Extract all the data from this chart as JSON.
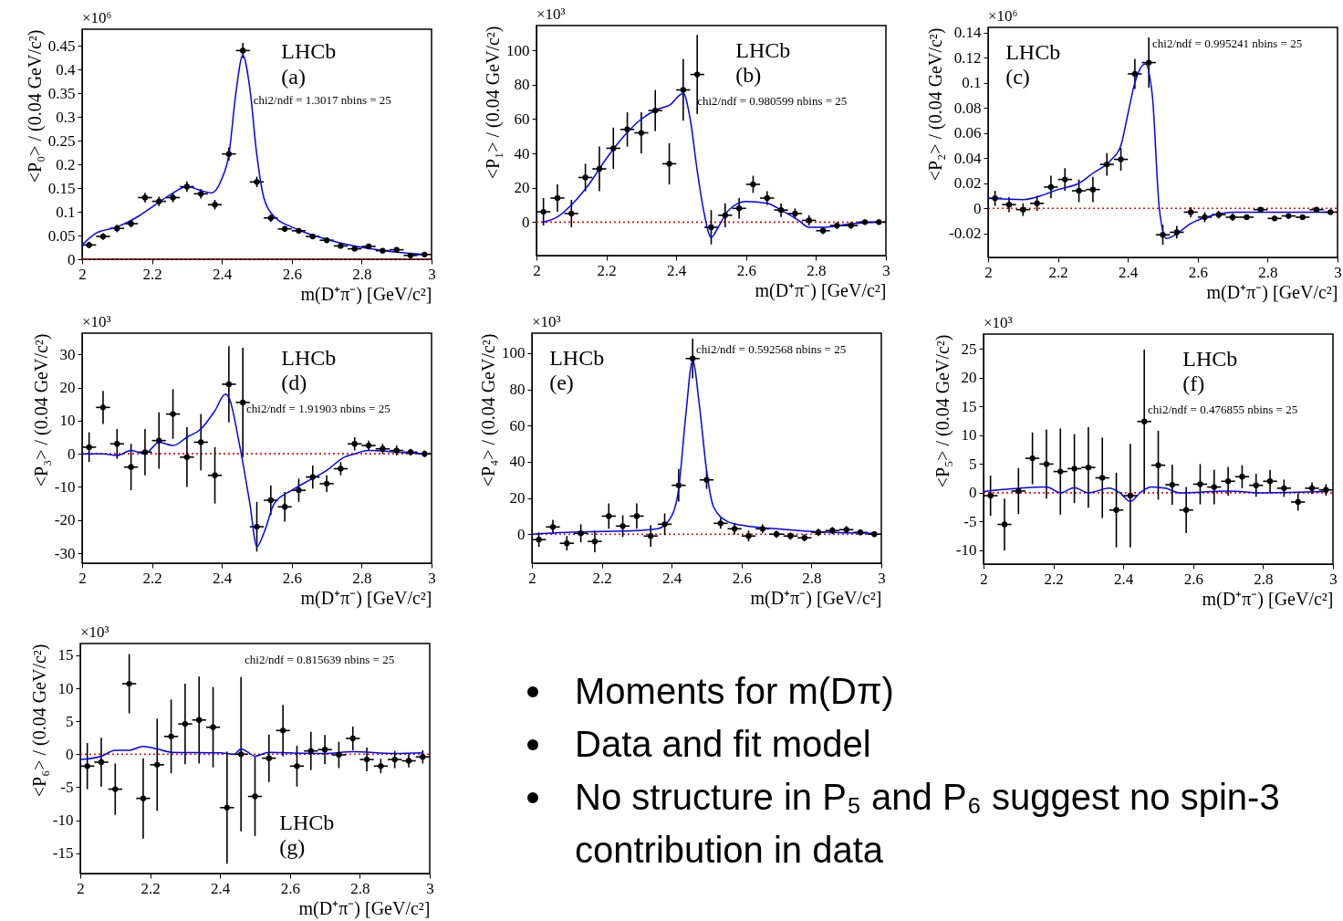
{
  "chart_data": [
    {
      "type": "scatter",
      "xlabel": "m(D⁺π⁻) [GeV/c²]",
      "ylabel": "<P₀> / (0.04 GeV/c²)",
      "x": [
        2.02,
        2.06,
        2.1,
        2.14,
        2.18,
        2.22,
        2.26,
        2.3,
        2.34,
        2.38,
        2.42,
        2.46,
        2.5,
        2.54,
        2.58,
        2.62,
        2.66,
        2.7,
        2.74,
        2.78,
        2.82,
        2.86,
        2.9,
        2.94,
        2.98
      ],
      "xlim": [
        2,
        3
      ],
      "xticks": [
        2,
        2.2,
        2.4,
        2.6,
        2.8,
        3
      ],
      "ylim": [
        0,
        0.485
      ],
      "yticks": [
        0,
        0.05,
        0.1,
        0.15,
        0.2,
        0.25,
        0.3,
        0.35,
        0.4,
        0.45
      ],
      "ref_lines": [
        {
          "axis": "y",
          "value": 0,
          "color": "#ff0000",
          "line_style": "dotted"
        }
      ],
      "annotations": [
        "×10⁶",
        "LHCb",
        "(a)",
        "chi2/ndf = 1.3017 nbins = 25"
      ],
      "series": [
        {
          "type": "scatter",
          "color": "#000000",
          "marker": "circle",
          "values": [
            0.03,
            0.048,
            0.065,
            0.075,
            0.13,
            0.122,
            0.13,
            0.153,
            0.138,
            0.115,
            0.222,
            0.44,
            0.163,
            0.087,
            0.064,
            0.06,
            0.048,
            0.04,
            0.028,
            0.022,
            0.027,
            0.018,
            0.02,
            0.008,
            0.01
          ],
          "errors": [
            0.007,
            0.007,
            0.008,
            0.008,
            0.01,
            0.01,
            0.01,
            0.011,
            0.01,
            0.01,
            0.014,
            0.016,
            0.011,
            0.008,
            0.006,
            0.006,
            0.005,
            0.005,
            0.004,
            0.004,
            0.004,
            0.003,
            0.003,
            0.003,
            0.003
          ],
          "xerrors": [
            0.02,
            0.02,
            0.02,
            0.02,
            0.02,
            0.02,
            0.02,
            0.02,
            0.02,
            0.02,
            0.02,
            0.02,
            0.02,
            0.02,
            0.02,
            0.02,
            0.02,
            0.02,
            0.02,
            0.02,
            0.02,
            0.02,
            0.02,
            0.02,
            0.02
          ]
        },
        {
          "type": "line",
          "color": "#0000ff",
          "marker": "none",
          "line_style": "solid",
          "x": [
            2.0,
            2.04,
            2.1,
            2.16,
            2.2,
            2.25,
            2.3,
            2.34,
            2.37,
            2.4,
            2.42,
            2.44,
            2.46,
            2.48,
            2.5,
            2.52,
            2.55,
            2.6,
            2.7,
            2.8,
            2.9,
            2.98
          ],
          "values": [
            0.03,
            0.055,
            0.068,
            0.09,
            0.11,
            0.135,
            0.153,
            0.145,
            0.14,
            0.17,
            0.22,
            0.35,
            0.43,
            0.36,
            0.22,
            0.13,
            0.09,
            0.068,
            0.042,
            0.025,
            0.015,
            0.01
          ]
        }
      ]
    },
    {
      "type": "scatter",
      "xlabel": "m(D⁺π⁻) [GeV/c²]",
      "ylabel": "<P₁> / (0.04 GeV/c²)",
      "x": [
        2.02,
        2.06,
        2.1,
        2.14,
        2.18,
        2.22,
        2.26,
        2.3,
        2.34,
        2.38,
        2.42,
        2.46,
        2.5,
        2.54,
        2.58,
        2.62,
        2.66,
        2.7,
        2.74,
        2.78,
        2.82,
        2.86,
        2.9,
        2.94,
        2.98
      ],
      "xlim": [
        2,
        3
      ],
      "xticks": [
        2,
        2.2,
        2.4,
        2.6,
        2.8,
        3
      ],
      "ylim": [
        -19.5,
        114.5
      ],
      "yticks": [
        0,
        20,
        40,
        60,
        80,
        100
      ],
      "ref_lines": [
        {
          "axis": "y",
          "value": 0,
          "color": "#ff0000",
          "line_style": "dotted"
        }
      ],
      "annotations": [
        "×10³",
        "LHCb",
        "(b)",
        "chi2/ndf = 0.980599 nbins = 25"
      ],
      "series": [
        {
          "type": "scatter",
          "color": "#000000",
          "marker": "circle",
          "values": [
            6,
            14,
            5,
            26,
            31,
            43,
            54,
            52,
            65,
            34,
            77,
            86,
            -3,
            4,
            8,
            22,
            14,
            7,
            5,
            1,
            -5,
            -2,
            -2,
            0,
            0
          ],
          "errors": [
            8,
            8,
            8,
            8,
            13,
            12,
            10,
            12,
            12,
            12,
            18,
            23,
            10,
            7,
            6,
            5,
            4,
            4,
            3,
            3,
            2,
            2,
            2,
            1.5,
            1.5
          ],
          "xerrors": [
            0.02,
            0.02,
            0.02,
            0.02,
            0.02,
            0.02,
            0.02,
            0.02,
            0.02,
            0.02,
            0.02,
            0.02,
            0.02,
            0.02,
            0.02,
            0.02,
            0.02,
            0.02,
            0.02,
            0.02,
            0.02,
            0.02,
            0.02,
            0.02,
            0.02
          ]
        },
        {
          "type": "line",
          "color": "#0000ff",
          "marker": "none",
          "line_style": "solid",
          "x": [
            2.02,
            2.06,
            2.1,
            2.15,
            2.2,
            2.25,
            2.3,
            2.35,
            2.38,
            2.42,
            2.44,
            2.46,
            2.48,
            2.5,
            2.52,
            2.55,
            2.6,
            2.66,
            2.7,
            2.75,
            2.78,
            2.82,
            2.9,
            2.98
          ],
          "values": [
            0,
            3,
            10,
            22,
            37,
            50,
            60,
            66,
            68,
            75,
            60,
            30,
            5,
            -9,
            -3,
            7,
            12,
            11,
            7,
            1,
            -3,
            -3,
            -1,
            0
          ]
        }
      ]
    },
    {
      "type": "scatter",
      "xlabel": "m(D⁺π⁻) [GeV/c²]",
      "ylabel": "<P₂> / (0.04 GeV/c²)",
      "x": [
        2.02,
        2.06,
        2.1,
        2.14,
        2.18,
        2.22,
        2.26,
        2.3,
        2.34,
        2.38,
        2.42,
        2.46,
        2.5,
        2.54,
        2.58,
        2.62,
        2.66,
        2.7,
        2.74,
        2.78,
        2.82,
        2.86,
        2.9,
        2.94,
        2.98
      ],
      "xlim": [
        2,
        3
      ],
      "xticks": [
        2,
        2.2,
        2.4,
        2.6,
        2.8,
        3
      ],
      "ylim": [
        -0.039,
        0.144
      ],
      "yticks": [
        -0.02,
        0,
        0.02,
        0.04,
        0.06,
        0.08,
        0.1,
        0.12,
        0.14
      ],
      "ref_lines": [
        {
          "axis": "y",
          "value": 0,
          "color": "#ff0000",
          "line_style": "dotted"
        }
      ],
      "annotations": [
        "×10⁶",
        "LHCb",
        "(c)",
        "chi2/ndf = 0.995241 nbins = 25"
      ],
      "series": [
        {
          "type": "scatter",
          "color": "#000000",
          "marker": "circle",
          "values": [
            0.008,
            0.003,
            -0.001,
            0.004,
            0.017,
            0.023,
            0.014,
            0.015,
            0.035,
            0.039,
            0.107,
            0.116,
            -0.021,
            -0.019,
            -0.003,
            -0.007,
            -0.005,
            -0.007,
            -0.007,
            -0.001,
            -0.008,
            -0.006,
            -0.007,
            -0.001,
            -0.003
          ],
          "errors": [
            0.006,
            0.006,
            0.005,
            0.006,
            0.009,
            0.009,
            0.009,
            0.01,
            0.009,
            0.009,
            0.012,
            0.02,
            0.008,
            0.005,
            0.004,
            0.004,
            0.003,
            0.003,
            0.002,
            0.002,
            0.002,
            0.002,
            0.002,
            0.002,
            0.002
          ],
          "xerrors": [
            0.02,
            0.02,
            0.02,
            0.02,
            0.02,
            0.02,
            0.02,
            0.02,
            0.02,
            0.02,
            0.02,
            0.02,
            0.02,
            0.02,
            0.02,
            0.02,
            0.02,
            0.02,
            0.02,
            0.02,
            0.02,
            0.02,
            0.02,
            0.02,
            0.02
          ]
        },
        {
          "type": "line",
          "color": "#0000ff",
          "marker": "none",
          "line_style": "solid",
          "x": [
            2.0,
            2.1,
            2.15,
            2.2,
            2.26,
            2.3,
            2.35,
            2.38,
            2.4,
            2.42,
            2.45,
            2.47,
            2.49,
            2.51,
            2.53,
            2.58,
            2.65,
            2.7,
            2.8,
            2.9,
            2.98
          ],
          "values": [
            0.008,
            0.007,
            0.01,
            0.015,
            0.02,
            0.028,
            0.038,
            0.05,
            0.075,
            0.1,
            0.115,
            0.09,
            0,
            -0.024,
            -0.022,
            -0.012,
            -0.005,
            -0.003,
            -0.003,
            -0.003,
            -0.003
          ]
        }
      ]
    },
    {
      "type": "scatter",
      "xlabel": "m(D⁺π⁻) [GeV/c²]",
      "ylabel": "<P₃> / (0.04 GeV/c²)",
      "x": [
        2.02,
        2.06,
        2.1,
        2.14,
        2.18,
        2.22,
        2.26,
        2.3,
        2.34,
        2.38,
        2.42,
        2.46,
        2.5,
        2.54,
        2.58,
        2.62,
        2.66,
        2.7,
        2.74,
        2.78,
        2.82,
        2.86,
        2.9,
        2.94,
        2.98
      ],
      "xlim": [
        2,
        3
      ],
      "xticks": [
        2,
        2.2,
        2.4,
        2.6,
        2.8,
        3
      ],
      "ylim": [
        -33,
        36.4
      ],
      "yticks": [
        -30,
        -20,
        -10,
        0,
        10,
        20,
        30
      ],
      "ref_lines": [
        {
          "axis": "y",
          "value": 0,
          "color": "#ff0000",
          "line_style": "dotted"
        }
      ],
      "annotations": [
        "×10³",
        "LHCb",
        "(d)",
        "chi2/ndf = 1.91903 nbins = 25"
      ],
      "series": [
        {
          "type": "scatter",
          "color": "#000000",
          "marker": "circle",
          "values": [
            2,
            14,
            3,
            -4,
            0.5,
            4,
            12,
            -1,
            3.5,
            -6.5,
            21,
            15.5,
            -22,
            -14,
            -16,
            -11,
            -7,
            -9,
            -4.5,
            3,
            2.5,
            1.5,
            1,
            0.5,
            0
          ],
          "errors": [
            4.5,
            5,
            4.5,
            7,
            7,
            8.5,
            7.5,
            9,
            8.5,
            8.5,
            11.5,
            16.5,
            7.5,
            4.5,
            4.5,
            3.5,
            3.5,
            2.5,
            2,
            2,
            1.5,
            1.5,
            1.5,
            1,
            1
          ],
          "xerrors": [
            0.02,
            0.02,
            0.02,
            0.02,
            0.02,
            0.02,
            0.02,
            0.02,
            0.02,
            0.02,
            0.02,
            0.02,
            0.02,
            0.02,
            0.02,
            0.02,
            0.02,
            0.02,
            0.02,
            0.02,
            0.02,
            0.02,
            0.02,
            0.02,
            0.02
          ]
        },
        {
          "type": "line",
          "color": "#0000ff",
          "marker": "none",
          "line_style": "solid",
          "x": [
            2.0,
            2.06,
            2.1,
            2.14,
            2.18,
            2.22,
            2.26,
            2.3,
            2.34,
            2.38,
            2.41,
            2.42,
            2.45,
            2.48,
            2.5,
            2.52,
            2.55,
            2.6,
            2.65,
            2.7,
            2.75,
            2.78,
            2.82,
            2.9,
            2.98
          ],
          "values": [
            0,
            0,
            -0.5,
            1,
            0,
            3.5,
            2.5,
            5,
            7.5,
            13,
            18,
            17,
            3,
            -15,
            -28,
            -24,
            -15,
            -11,
            -8,
            -5,
            -1,
            0,
            1,
            0.5,
            0
          ]
        }
      ]
    },
    {
      "type": "scatter",
      "xlabel": "m(D⁺π⁻) [GeV/c²]",
      "ylabel": "<P₄> / (0.04 GeV/c²)",
      "x": [
        2.02,
        2.06,
        2.1,
        2.14,
        2.18,
        2.22,
        2.26,
        2.3,
        2.34,
        2.38,
        2.42,
        2.46,
        2.5,
        2.54,
        2.58,
        2.62,
        2.66,
        2.7,
        2.74,
        2.78,
        2.82,
        2.86,
        2.9,
        2.94,
        2.98
      ],
      "xlim": [
        2,
        3
      ],
      "xticks": [
        2,
        2.2,
        2.4,
        2.6,
        2.8,
        3
      ],
      "ylim": [
        -16,
        111
      ],
      "yticks": [
        0,
        20,
        40,
        60,
        80,
        100
      ],
      "ref_lines": [
        {
          "axis": "y",
          "value": 0,
          "color": "#ff0000",
          "line_style": "dotted"
        }
      ],
      "annotations": [
        "×10³",
        "LHCb",
        "(e)",
        "chi2/ndf = 0.592568 nbins = 25"
      ],
      "series": [
        {
          "type": "scatter",
          "color": "#000000",
          "marker": "circle",
          "values": [
            -3,
            4,
            -5,
            0.5,
            -4,
            10,
            4.5,
            10,
            -1,
            5.5,
            27,
            97,
            30,
            6,
            3,
            -1,
            3,
            0,
            -1,
            -2,
            1,
            2,
            2.5,
            1,
            0
          ],
          "errors": [
            4,
            4,
            4,
            5,
            6,
            7,
            6,
            7,
            6,
            6,
            9,
            11,
            5,
            3,
            3,
            3,
            2.5,
            2,
            2,
            2,
            2,
            2,
            2,
            1.5,
            1.5
          ],
          "xerrors": [
            0.02,
            0.02,
            0.02,
            0.02,
            0.02,
            0.02,
            0.02,
            0.02,
            0.02,
            0.02,
            0.02,
            0.02,
            0.02,
            0.02,
            0.02,
            0.02,
            0.02,
            0.02,
            0.02,
            0.02,
            0.02,
            0.02,
            0.02,
            0.02,
            0.02
          ]
        },
        {
          "type": "line",
          "color": "#0000ff",
          "marker": "none",
          "line_style": "solid",
          "x": [
            2.0,
            2.1,
            2.2,
            2.3,
            2.36,
            2.4,
            2.42,
            2.44,
            2.46,
            2.48,
            2.5,
            2.52,
            2.56,
            2.6,
            2.7,
            2.8,
            2.98
          ],
          "values": [
            0,
            1,
            1.5,
            2,
            3,
            10,
            25,
            65,
            96,
            70,
            35,
            15,
            7,
            5,
            3,
            1.5,
            0.5
          ]
        }
      ]
    },
    {
      "type": "scatter",
      "xlabel": "m(D⁺π⁻) [GeV/c²]",
      "ylabel": "<P₅> / (0.04 GeV/c²)",
      "x": [
        2.02,
        2.06,
        2.1,
        2.14,
        2.18,
        2.22,
        2.26,
        2.3,
        2.34,
        2.38,
        2.42,
        2.46,
        2.5,
        2.54,
        2.58,
        2.62,
        2.66,
        2.7,
        2.74,
        2.78,
        2.82,
        2.86,
        2.9,
        2.94,
        2.98
      ],
      "xlim": [
        2,
        3
      ],
      "xticks": [
        2,
        2.2,
        2.4,
        2.6,
        2.8,
        3
      ],
      "ylim": [
        -12.4,
        27.6
      ],
      "yticks": [
        -10,
        -5,
        0,
        5,
        10,
        15,
        20,
        25
      ],
      "ref_lines": [
        {
          "axis": "y",
          "value": 0,
          "color": "#ff0000",
          "line_style": "dotted"
        }
      ],
      "annotations": [
        "×10³",
        "LHCb",
        "(f)",
        "chi2/ndf = 0.476855 nbins = 25"
      ],
      "series": [
        {
          "type": "scatter",
          "color": "#000000",
          "marker": "circle",
          "values": [
            -0.5,
            -5.5,
            0.3,
            6,
            5,
            3.7,
            4.2,
            4.4,
            2.6,
            -3,
            -0.5,
            12.4,
            4.8,
            1.4,
            -3,
            1.5,
            1,
            2,
            2.8,
            1.3,
            2,
            0.8,
            -1.6,
            0.8,
            0.5
          ],
          "errors": [
            3.5,
            4.5,
            4,
            4.5,
            6,
            7.5,
            6,
            7,
            7,
            6.5,
            9,
            12.5,
            6,
            3.5,
            4,
            3.5,
            3,
            2.5,
            2,
            2,
            2,
            1.5,
            1.5,
            1,
            1
          ],
          "xerrors": [
            0.02,
            0.02,
            0.02,
            0.02,
            0.02,
            0.02,
            0.02,
            0.02,
            0.02,
            0.02,
            0.02,
            0.02,
            0.02,
            0.02,
            0.02,
            0.02,
            0.02,
            0.02,
            0.02,
            0.02,
            0.02,
            0.02,
            0.02,
            0.02,
            0.02
          ]
        },
        {
          "type": "line",
          "color": "#0000ff",
          "marker": "none",
          "line_style": "solid",
          "x": [
            2.0,
            2.18,
            2.22,
            2.26,
            2.3,
            2.36,
            2.39,
            2.42,
            2.45,
            2.48,
            2.52,
            2.56,
            2.7,
            2.8,
            2.98
          ],
          "values": [
            0.2,
            1,
            0,
            0.9,
            0,
            0.8,
            0,
            -1.5,
            0.1,
            1,
            0.8,
            0,
            0.3,
            0,
            0.2
          ]
        }
      ]
    },
    {
      "type": "scatter",
      "xlabel": "m(D⁺π⁻) [GeV/c²]",
      "ylabel": "<P₆> / (0.04 GeV/c²)",
      "x": [
        2.02,
        2.06,
        2.1,
        2.14,
        2.18,
        2.22,
        2.26,
        2.3,
        2.34,
        2.38,
        2.42,
        2.46,
        2.5,
        2.54,
        2.58,
        2.62,
        2.66,
        2.7,
        2.74,
        2.78,
        2.82,
        2.86,
        2.9,
        2.94,
        2.98
      ],
      "xlim": [
        2,
        3
      ],
      "xticks": [
        2,
        2.2,
        2.4,
        2.6,
        2.8,
        3
      ],
      "ylim": [
        -18.1,
        16.8
      ],
      "yticks": [
        -15,
        -10,
        -5,
        0,
        5,
        10,
        15
      ],
      "ref_lines": [
        {
          "axis": "y",
          "value": 0,
          "color": "#ff0000",
          "line_style": "dotted"
        }
      ],
      "annotations": [
        "×10³",
        "LHCb",
        "(g)",
        "chi2/ndf = 0.815639 nbins = 25"
      ],
      "series": [
        {
          "type": "scatter",
          "color": "#000000",
          "marker": "circle",
          "values": [
            -1.8,
            -1.2,
            -5.3,
            10.7,
            -6.7,
            -1.6,
            2.7,
            4.6,
            5.2,
            4.1,
            -8.1,
            0,
            -6.4,
            -0.6,
            3.6,
            -1.8,
            0.5,
            0.7,
            -0.1,
            2.4,
            -0.8,
            -1.8,
            -0.8,
            -1,
            -0.4
          ],
          "errors": [
            3.5,
            3.7,
            3.9,
            4.5,
            6.1,
            7,
            5.6,
            6.1,
            6.6,
            6.1,
            8.5,
            11.7,
            6,
            3.6,
            3.9,
            3.1,
            2.9,
            2.2,
            2,
            1.8,
            1.8,
            1.1,
            1.3,
            1,
            1
          ],
          "xerrors": [
            0.02,
            0.02,
            0.02,
            0.02,
            0.02,
            0.02,
            0.02,
            0.02,
            0.02,
            0.02,
            0.02,
            0.02,
            0.02,
            0.02,
            0.02,
            0.02,
            0.02,
            0.02,
            0.02,
            0.02,
            0.02,
            0.02,
            0.02,
            0.02,
            0.02
          ]
        },
        {
          "type": "line",
          "color": "#0000ff",
          "marker": "none",
          "line_style": "solid",
          "x": [
            2.0,
            2.06,
            2.1,
            2.14,
            2.18,
            2.22,
            2.26,
            2.4,
            2.44,
            2.46,
            2.48,
            2.5,
            2.54,
            2.6,
            2.7,
            2.78,
            2.9,
            2.98
          ],
          "values": [
            -0.8,
            -0.3,
            0.6,
            0.6,
            1.2,
            0.8,
            0.3,
            0.2,
            0,
            0.8,
            0.3,
            -0.3,
            0.3,
            0.2,
            0.1,
            0.4,
            0.1,
            0.2
          ]
        }
      ]
    },
    {
      "type": "other",
      "annotations": [
        "Moments for m(Dπ)",
        "Data and fit model",
        "No structure in P₅ and P₆ suggest no spin-3 contribution in data"
      ]
    }
  ]
}
